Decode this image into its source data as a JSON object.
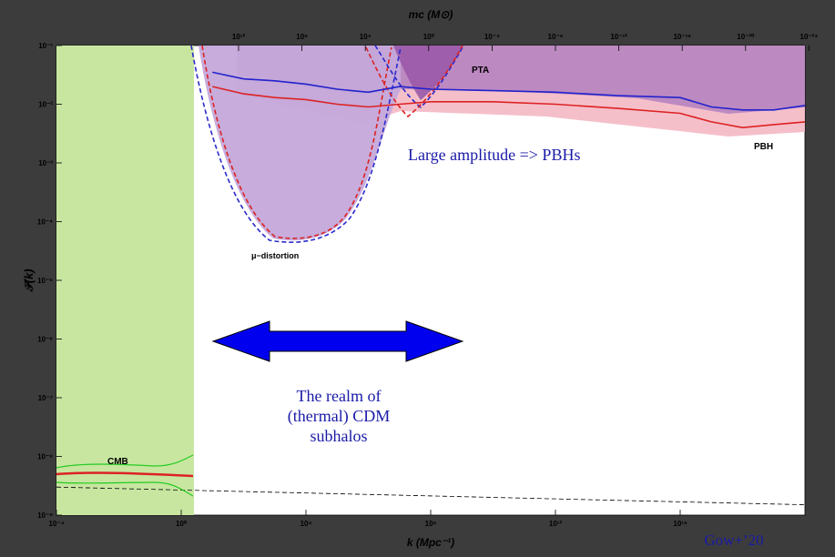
{
  "chart_data": {
    "type": "line",
    "x_axis": {
      "label": "k (Mpc⁻¹)",
      "scale": "log",
      "range": [
        0.0001,
        1e+20
      ],
      "ticks": [
        "10⁻⁴",
        "10⁰",
        "10⁴",
        "10⁸",
        "10¹²",
        "10¹⁶"
      ]
    },
    "top_axis": {
      "label": "mᴄ (M⊙)",
      "ticks": [
        "10¹²",
        "10⁸",
        "10⁴",
        "10⁰",
        "10⁻⁴",
        "10⁻⁸",
        "10⁻¹²",
        "10⁻¹⁶",
        "10⁻²⁰",
        "10⁻²⁴"
      ]
    },
    "y_axis": {
      "label": "𝒫(k)",
      "scale": "log",
      "range": [
        1e-09,
        0.1
      ],
      "ticks": [
        "10⁻¹",
        "10⁻²",
        "10⁻³",
        "10⁻⁴",
        "10⁻⁵",
        "10⁻⁶",
        "10⁻⁷",
        "10⁻⁸",
        "10⁻⁹"
      ]
    },
    "regions": [
      {
        "label": "CMB",
        "kind": "CMB",
        "x_range": [
          0.0001,
          0.6
        ],
        "color": "#c8e6a0"
      },
      {
        "label": "μ−distortion",
        "kind": "mu_distortion"
      },
      {
        "label": "PTA",
        "kind": "PTA"
      },
      {
        "label": "PBH",
        "kind": "PBH"
      }
    ],
    "series": [
      {
        "color": "#2222cc",
        "points": [
          [
            10,
            0.035
          ],
          [
            100,
            0.027
          ],
          [
            1000,
            0.025
          ],
          [
            10000,
            0.022
          ],
          [
            100000,
            0.018
          ],
          [
            1000000,
            0.016
          ],
          [
            10000000,
            0.02
          ],
          [
            100000000,
            0.018
          ],
          [
            10000000000.0,
            0.017
          ],
          [
            1000000000000.0,
            0.016
          ],
          [
            100000000000000.0,
            0.014
          ],
          [
            1e+16,
            0.013
          ],
          [
            1e+17,
            0.009
          ],
          [
            1e+18,
            0.008
          ],
          [
            1e+19,
            0.008
          ],
          [
            1e+20,
            0.0095
          ]
        ]
      },
      {
        "color": "#dd2222",
        "points": [
          [
            10,
            0.02
          ],
          [
            100,
            0.015
          ],
          [
            1000,
            0.013
          ],
          [
            10000,
            0.012
          ],
          [
            100000,
            0.01
          ],
          [
            1000000,
            0.009
          ],
          [
            10000000,
            0.01
          ],
          [
            100000000,
            0.011
          ],
          [
            10000000000.0,
            0.011
          ],
          [
            1000000000000.0,
            0.01
          ],
          [
            100000000000000.0,
            0.0085
          ],
          [
            1e+16,
            0.007
          ],
          [
            1e+17,
            0.005
          ],
          [
            1e+18,
            0.004
          ],
          [
            1e+19,
            0.0045
          ],
          [
            1e+20,
            0.005
          ]
        ]
      }
    ],
    "reference_line": {
      "points": [
        [
          0.0001,
          3e-09
        ],
        [
          1e+20,
          1.5e-09
        ]
      ],
      "color": "#000000"
    }
  },
  "annotations": {
    "pbh_text": "Large amplitude => PBHs",
    "realm_line1": "The realm of",
    "realm_line2": "(thermal) CDM",
    "realm_line3": "subhalos",
    "citation": "Gow+’20"
  },
  "colors": {
    "background": "#3c3c3c",
    "plot_bg": "#ffffff",
    "annotation_text": "#1a1aa8",
    "arrow_fill": "#0000ee"
  }
}
